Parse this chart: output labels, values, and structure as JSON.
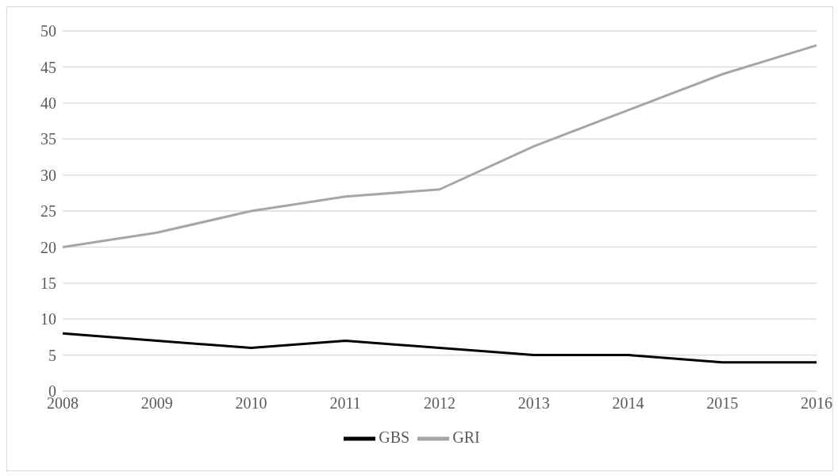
{
  "chart_data": {
    "type": "line",
    "categories": [
      "2008",
      "2009",
      "2010",
      "2011",
      "2012",
      "2013",
      "2014",
      "2015",
      "2016"
    ],
    "series": [
      {
        "name": "GBS",
        "color": "#000000",
        "values": [
          8,
          7,
          6,
          7,
          6,
          5,
          5,
          4,
          4
        ]
      },
      {
        "name": "GRI",
        "color": "#a6a6a6",
        "values": [
          20,
          22,
          25,
          27,
          28,
          34,
          39,
          44,
          48
        ]
      }
    ],
    "ylim": [
      0,
      50
    ],
    "yticks": [
      0,
      5,
      10,
      15,
      20,
      25,
      30,
      35,
      40,
      45,
      50
    ],
    "grid": "y",
    "legend": "bottom",
    "marker": "none",
    "line_style": "solid"
  }
}
